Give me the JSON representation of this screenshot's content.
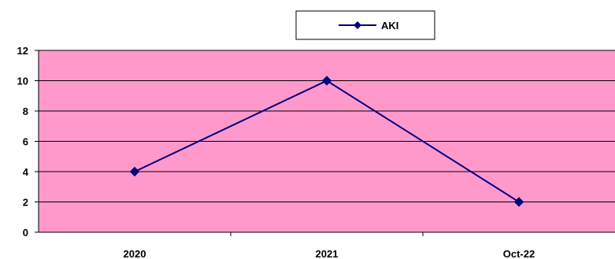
{
  "chart_data": {
    "type": "line",
    "categories": [
      "2020",
      "2021",
      "Oct-22"
    ],
    "series": [
      {
        "name": "AKI",
        "values": [
          4,
          10,
          2
        ]
      }
    ],
    "ylim": [
      0,
      12
    ],
    "yticks": [
      0,
      2,
      4,
      6,
      8,
      10,
      12
    ],
    "grid": true,
    "legend": "top-center",
    "colors": {
      "plot_background": "#ff99cc",
      "series": "#000080",
      "gridline": "#000000"
    }
  }
}
